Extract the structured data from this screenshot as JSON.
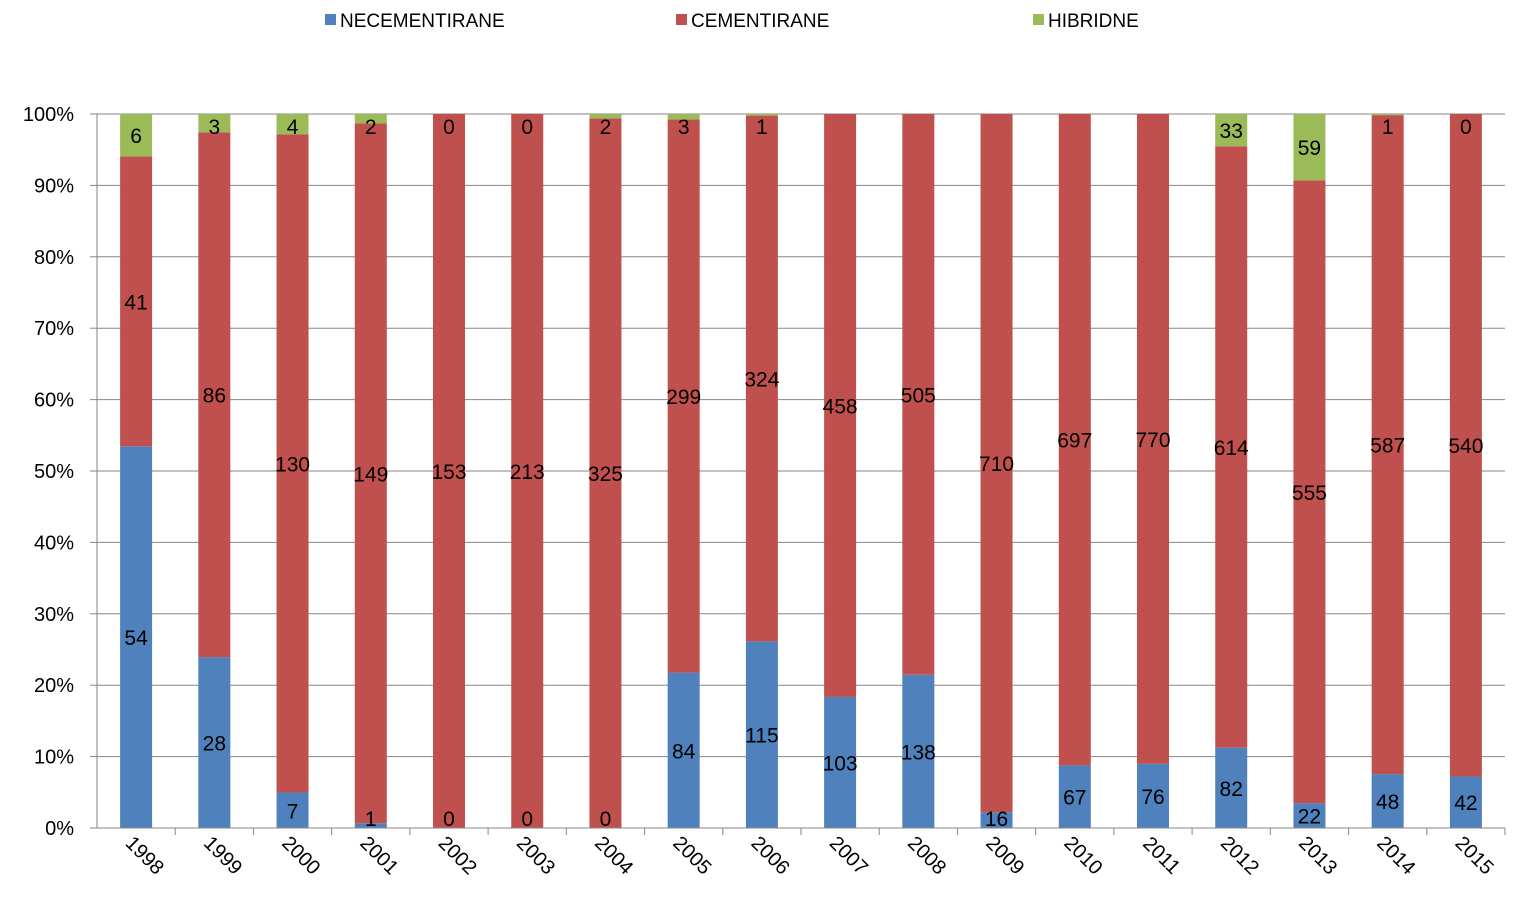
{
  "chart_data": {
    "type": "bar",
    "stacked": "percent",
    "categories": [
      "1998",
      "1999",
      "2000",
      "2001",
      "2002",
      "2003",
      "2004",
      "2005",
      "2006",
      "2007",
      "2008",
      "2009",
      "2010",
      "2011",
      "2012",
      "2013",
      "2014",
      "2015"
    ],
    "series": [
      {
        "name": "NECEMENTIRANE",
        "color": "#4F81BD",
        "values": [
          54,
          28,
          7,
          1,
          0,
          0,
          0,
          84,
          115,
          103,
          138,
          16,
          67,
          76,
          82,
          22,
          48,
          42
        ],
        "labels": [
          "54",
          "28",
          "7",
          "1",
          "0",
          "0",
          "0",
          "84",
          "115",
          "103",
          "138",
          "16",
          "67",
          "76",
          "82",
          "22",
          "48",
          "42"
        ]
      },
      {
        "name": "CEMENTIRANE",
        "color": "#C0504D",
        "values": [
          41,
          86,
          130,
          149,
          153,
          213,
          325,
          299,
          324,
          458,
          505,
          710,
          697,
          770,
          614,
          555,
          587,
          540
        ],
        "labels": [
          "41",
          "86",
          "130",
          "149",
          "153",
          "213",
          "325",
          "299",
          "324",
          "458",
          "505",
          "710",
          "697",
          "770",
          "614",
          "555",
          "587",
          "540"
        ]
      },
      {
        "name": "HIBRIDNE",
        "color": "#9BBB59",
        "values": [
          6,
          3,
          4,
          2,
          0,
          0,
          2,
          3,
          1,
          0,
          0,
          0,
          0,
          0,
          33,
          59,
          1,
          0
        ],
        "labels": [
          "6",
          "3",
          "4",
          "2",
          "0",
          "0",
          "2",
          "3",
          "1",
          "",
          "",
          "",
          "",
          "",
          "33",
          "59",
          "1",
          "0"
        ]
      }
    ],
    "yticks": [
      "0%",
      "10%",
      "20%",
      "30%",
      "40%",
      "50%",
      "60%",
      "70%",
      "80%",
      "90%",
      "100%"
    ],
    "ylim": [
      0,
      100
    ],
    "grid": true,
    "legend_position": "top"
  }
}
